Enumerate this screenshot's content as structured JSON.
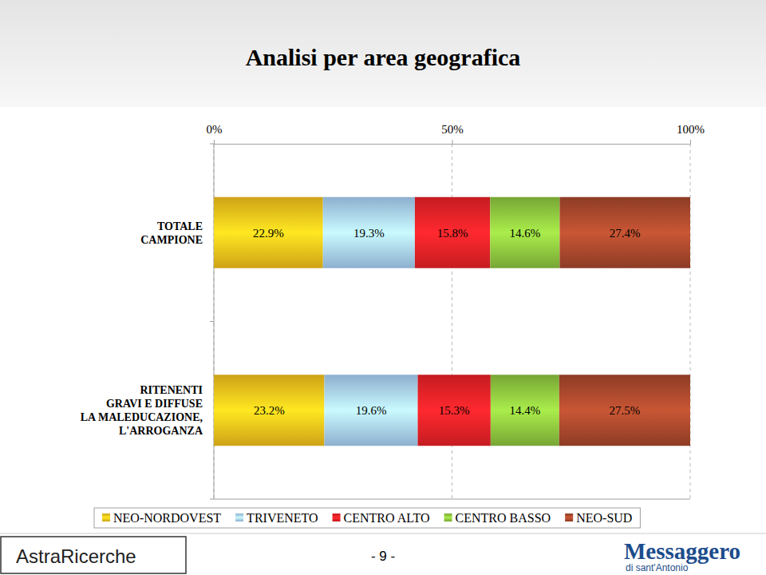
{
  "chart_data": {
    "type": "bar",
    "title": "Analisi per area geografica",
    "orientation": "horizontal",
    "stacked": true,
    "data_labels": true,
    "grid": true,
    "legend": "bottom",
    "categories": [
      "TOTALE\nCAMPIONE",
      "RITENENTI\nGRAVI E DIFFUSE\nLA MALEDUCAZIONE,\nL'ARROGANZA"
    ],
    "xlim": [
      0,
      100
    ],
    "xticks": [
      {
        "value": 0,
        "label": "0%"
      },
      {
        "value": 50,
        "label": "50%"
      },
      {
        "value": 100,
        "label": "100%"
      }
    ],
    "series": [
      {
        "name": "NEO-NORDOVEST",
        "color": "#f6c21c",
        "values": [
          22.9,
          23.2
        ],
        "value_labels": [
          "22.9%",
          "23.2%"
        ]
      },
      {
        "name": "TRIVENETO",
        "color": "#a9d1f7",
        "values": [
          19.3,
          19.6
        ],
        "value_labels": [
          "19.3%",
          "19.6%"
        ]
      },
      {
        "name": "CENTRO ALTO",
        "color": "#ec2227",
        "values": [
          15.8,
          15.3
        ],
        "value_labels": [
          "15.8%",
          "15.3%"
        ]
      },
      {
        "name": "CENTRO BASSO",
        "color": "#8ec63f",
        "values": [
          14.6,
          14.4
        ],
        "value_labels": [
          "14.6%",
          "14.4%"
        ]
      },
      {
        "name": "NEO-SUD",
        "color": "#a8482c",
        "values": [
          27.4,
          27.5
        ],
        "value_labels": [
          "27.4%",
          "27.5%"
        ]
      }
    ]
  },
  "page": {
    "footer_left": "AstraRicerche",
    "page_number": "- 9 -",
    "footer_right": "Messaggero",
    "footer_right_sub": "di sant'Antonio"
  }
}
